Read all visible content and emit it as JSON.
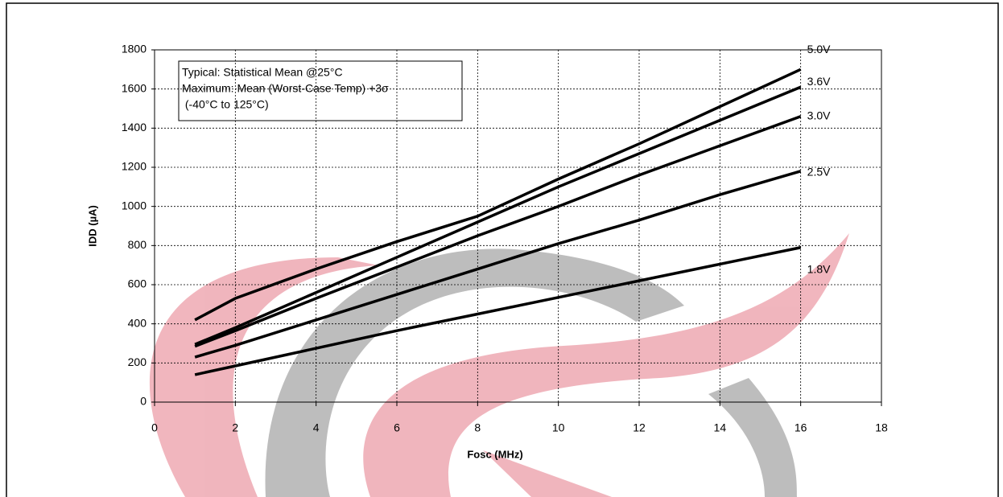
{
  "chart_data": {
    "type": "line",
    "xlabel": "Fosc (MHz)",
    "ylabel": "IDD (µA)",
    "annotation": [
      "Typical: Statistical Mean @25°C",
      "Maximum: Mean (Worst-Case Temp) +3σ",
      " (-40°C to 125°C)"
    ],
    "x": [
      1,
      2,
      4,
      6,
      8,
      10,
      12,
      14,
      16
    ],
    "series": [
      {
        "name": "5.0V",
        "color": "#000000",
        "values": [
          420,
          530,
          680,
          820,
          950,
          1140,
          1320,
          1510,
          1700
        ]
      },
      {
        "name": "3.6V",
        "color": "#000000",
        "values": [
          295,
          380,
          560,
          740,
          920,
          1100,
          1270,
          1440,
          1610
        ]
      },
      {
        "name": "3.0V",
        "color": "#000000",
        "values": [
          285,
          365,
          530,
          690,
          850,
          1000,
          1160,
          1310,
          1460
        ]
      },
      {
        "name": "2.5V",
        "color": "#000000",
        "values": [
          230,
          290,
          420,
          550,
          680,
          810,
          930,
          1060,
          1180
        ]
      },
      {
        "name": "1.8V",
        "color": "#000000",
        "values": [
          140,
          185,
          275,
          365,
          450,
          535,
          620,
          705,
          790
        ]
      }
    ],
    "xlim": [
      0,
      18
    ],
    "xticks": [
      0,
      2,
      4,
      6,
      8,
      10,
      12,
      14,
      16,
      18
    ],
    "ylim": [
      0,
      1800
    ],
    "yticks": [
      0,
      200,
      400,
      600,
      800,
      1000,
      1200,
      1400,
      1600,
      1800
    ],
    "grid": true
  }
}
